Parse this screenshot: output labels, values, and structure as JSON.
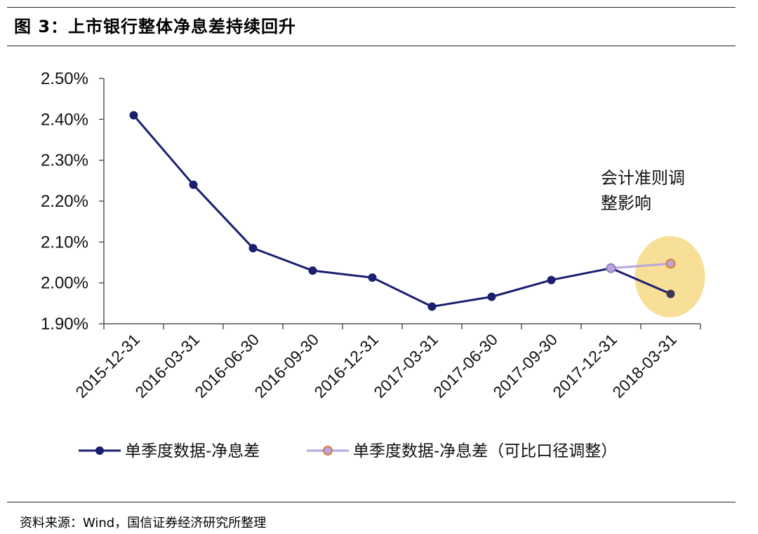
{
  "title": "图 3：上市银行整体净息差持续回升",
  "source": "资料来源：Wind，国信证券经济研究所整理",
  "chart_data": {
    "type": "line",
    "categories": [
      "2015-12-31",
      "2016-03-31",
      "2016-06-30",
      "2016-09-30",
      "2016-12-31",
      "2017-03-31",
      "2017-06-30",
      "2017-09-30",
      "2017-12-31",
      "2018-03-31"
    ],
    "ylim": [
      1.9,
      2.5
    ],
    "yticks": [
      "1.90%",
      "2.00%",
      "2.10%",
      "2.20%",
      "2.30%",
      "2.40%",
      "2.50%"
    ],
    "ytick_values": [
      1.9,
      2.0,
      2.1,
      2.2,
      2.3,
      2.4,
      2.5
    ],
    "grid": false,
    "legend_position": "bottom",
    "series": [
      {
        "name": "单季度数据-净息差",
        "color": "#1a1f6e",
        "values": [
          2.41,
          2.24,
          2.085,
          2.03,
          2.013,
          1.942,
          1.966,
          2.007,
          2.036,
          1.973
        ]
      },
      {
        "name": "单季度数据-净息差（可比口径调整）",
        "color": "#b8a6dc",
        "marker_edge": "#e07a3a",
        "values": [
          null,
          null,
          null,
          null,
          null,
          null,
          null,
          null,
          2.036,
          2.047
        ]
      }
    ],
    "annotation": {
      "lines": [
        "会计准则调",
        "整影响"
      ],
      "highlight_color": "#f7dc8c"
    }
  }
}
